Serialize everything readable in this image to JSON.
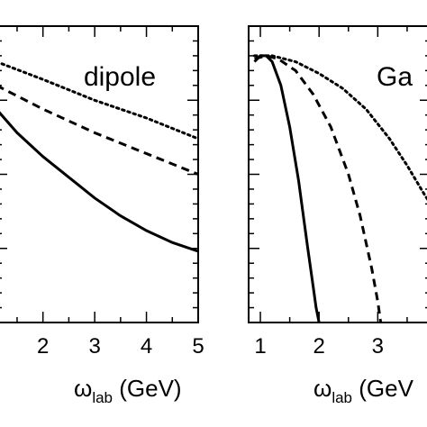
{
  "chart_data": [
    {
      "type": "line",
      "annotation": "dipole",
      "xlabel_main": "ω",
      "xlabel_sub": "lab",
      "xlabel_unit": " (GeV)",
      "xlim": [
        1.1,
        5
      ],
      "ylim": [
        0,
        1
      ],
      "x_ticks": [
        2,
        3,
        4,
        5
      ],
      "x_tick_labels": [
        "2",
        "3",
        "4",
        "5"
      ],
      "series": [
        {
          "style": "solid",
          "x": [
            1.1,
            1.5,
            2,
            2.5,
            3,
            3.5,
            4,
            4.5,
            5
          ],
          "y": [
            0.72,
            0.64,
            0.56,
            0.49,
            0.42,
            0.36,
            0.31,
            0.27,
            0.24
          ]
        },
        {
          "style": "dashed",
          "x": [
            1.1,
            2,
            3,
            4,
            5
          ],
          "y": [
            0.8,
            0.72,
            0.64,
            0.57,
            0.5
          ]
        },
        {
          "style": "dotted",
          "x": [
            1.1,
            2,
            3,
            4,
            5
          ],
          "y": [
            0.88,
            0.82,
            0.75,
            0.69,
            0.62
          ]
        }
      ]
    },
    {
      "type": "line",
      "annotation": "Ga",
      "xlabel_main": "ω",
      "xlabel_sub": "lab",
      "xlabel_unit": " (GeV",
      "xlim": [
        0.8,
        3.9
      ],
      "ylim": [
        0,
        1
      ],
      "x_ticks": [
        1,
        2,
        3
      ],
      "x_tick_labels": [
        "1",
        "2",
        "3"
      ],
      "series": [
        {
          "style": "solid",
          "x": [
            0.9,
            1.0,
            1.1,
            1.2,
            1.35,
            1.5,
            1.65,
            1.8,
            1.9,
            1.95,
            2.0
          ],
          "y": [
            0.88,
            0.9,
            0.9,
            0.88,
            0.8,
            0.66,
            0.48,
            0.26,
            0.12,
            0.05,
            0.0
          ]
        },
        {
          "style": "dashed",
          "x": [
            0.9,
            1.1,
            1.3,
            1.6,
            1.9,
            2.2,
            2.5,
            2.7,
            2.9,
            3.0,
            3.05
          ],
          "y": [
            0.89,
            0.9,
            0.89,
            0.85,
            0.77,
            0.66,
            0.5,
            0.36,
            0.18,
            0.07,
            0.0
          ]
        },
        {
          "style": "dotted",
          "x": [
            0.9,
            1.2,
            1.6,
            2.0,
            2.4,
            2.8,
            3.2,
            3.5,
            3.8,
            3.9
          ],
          "y": [
            0.9,
            0.9,
            0.88,
            0.84,
            0.79,
            0.72,
            0.62,
            0.53,
            0.43,
            0.4
          ]
        }
      ]
    }
  ]
}
